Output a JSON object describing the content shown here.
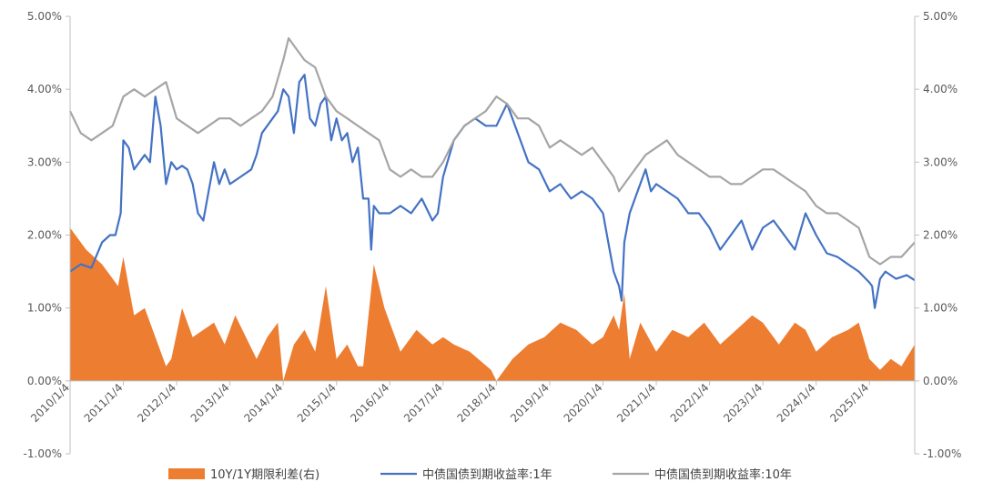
{
  "chart_data": {
    "type": "line",
    "title": "",
    "legend_position": "bottom",
    "grid": false,
    "x_ticks": [
      "2010/1/4",
      "2011/1/4",
      "2012/1/4",
      "2013/1/4",
      "2014/1/4",
      "2015/1/4",
      "2016/1/4",
      "2017/1/4",
      "2018/1/4",
      "2019/1/4",
      "2020/1/4",
      "2021/1/4",
      "2022/1/4",
      "2023/1/4",
      "2024/1/4",
      "2025/1/4"
    ],
    "x_range": [
      2010.0,
      2025.85
    ],
    "y_left": {
      "range": [
        -1.0,
        5.0
      ],
      "ticks": [
        "-1.00%",
        "0.00%",
        "1.00%",
        "2.00%",
        "3.00%",
        "4.00%",
        "5.00%"
      ]
    },
    "y_right": {
      "range": [
        -1.0,
        5.0
      ],
      "ticks": [
        "-1.00%",
        "0.00%",
        "1.00%",
        "2.00%",
        "3.00%",
        "4.00%",
        "5.00%"
      ]
    },
    "series": [
      {
        "name": "10Y/1Y期限利差(右)",
        "type": "area",
        "axis": "right",
        "color": "#ED7D31",
        "x": [
          2010.0,
          2010.3,
          2010.6,
          2010.9,
          2011.0,
          2011.2,
          2011.4,
          2011.6,
          2011.8,
          2011.9,
          2012.1,
          2012.3,
          2012.5,
          2012.7,
          2012.9,
          2013.1,
          2013.3,
          2013.5,
          2013.7,
          2013.9,
          2014.0,
          2014.2,
          2014.4,
          2014.6,
          2014.8,
          2015.0,
          2015.2,
          2015.4,
          2015.5,
          2015.7,
          2015.9,
          2016.2,
          2016.5,
          2016.8,
          2017.0,
          2017.2,
          2017.5,
          2017.9,
          2018.0,
          2018.3,
          2018.6,
          2018.9,
          2019.2,
          2019.5,
          2019.8,
          2020.0,
          2020.2,
          2020.3,
          2020.4,
          2020.5,
          2020.7,
          2021.0,
          2021.3,
          2021.6,
          2021.9,
          2022.2,
          2022.5,
          2022.8,
          2023.0,
          2023.3,
          2023.6,
          2023.8,
          2024.0,
          2024.3,
          2024.6,
          2024.8,
          2025.0,
          2025.2,
          2025.4,
          2025.6,
          2025.85
        ],
        "values": [
          2.1,
          1.8,
          1.6,
          1.3,
          1.7,
          0.9,
          1.0,
          0.6,
          0.2,
          0.3,
          1.0,
          0.6,
          0.7,
          0.8,
          0.5,
          0.9,
          0.6,
          0.3,
          0.6,
          0.8,
          0.0,
          0.5,
          0.7,
          0.4,
          1.3,
          0.3,
          0.5,
          0.2,
          0.2,
          1.6,
          1.0,
          0.4,
          0.7,
          0.5,
          0.6,
          0.5,
          0.4,
          0.15,
          0.0,
          0.3,
          0.5,
          0.6,
          0.8,
          0.7,
          0.5,
          0.6,
          0.9,
          0.7,
          1.2,
          0.3,
          0.8,
          0.4,
          0.7,
          0.6,
          0.8,
          0.5,
          0.7,
          0.9,
          0.8,
          0.5,
          0.8,
          0.7,
          0.4,
          0.6,
          0.7,
          0.8,
          0.3,
          0.15,
          0.3,
          0.2,
          0.5
        ]
      },
      {
        "name": "中债国债到期收益率:1年",
        "type": "line",
        "axis": "left",
        "color": "#4472C4",
        "x": [
          2010.0,
          2010.2,
          2010.4,
          2010.6,
          2010.75,
          2010.85,
          2010.95,
          2011.0,
          2011.1,
          2011.2,
          2011.3,
          2011.4,
          2011.5,
          2011.6,
          2011.7,
          2011.8,
          2011.9,
          2012.0,
          2012.1,
          2012.2,
          2012.3,
          2012.4,
          2012.5,
          2012.6,
          2012.7,
          2012.8,
          2012.9,
          2013.0,
          2013.2,
          2013.4,
          2013.5,
          2013.6,
          2013.7,
          2013.8,
          2013.9,
          2014.0,
          2014.1,
          2014.2,
          2014.3,
          2014.4,
          2014.5,
          2014.6,
          2014.7,
          2014.8,
          2014.9,
          2015.0,
          2015.1,
          2015.2,
          2015.3,
          2015.4,
          2015.5,
          2015.6,
          2015.65,
          2015.7,
          2015.8,
          2016.0,
          2016.2,
          2016.4,
          2016.6,
          2016.8,
          2016.9,
          2017.0,
          2017.2,
          2017.4,
          2017.6,
          2017.8,
          2018.0,
          2018.2,
          2018.4,
          2018.6,
          2018.8,
          2019.0,
          2019.2,
          2019.4,
          2019.6,
          2019.8,
          2020.0,
          2020.1,
          2020.2,
          2020.3,
          2020.35,
          2020.4,
          2020.5,
          2020.6,
          2020.8,
          2020.9,
          2021.0,
          2021.2,
          2021.4,
          2021.6,
          2021.8,
          2022.0,
          2022.2,
          2022.4,
          2022.6,
          2022.8,
          2023.0,
          2023.2,
          2023.4,
          2023.6,
          2023.8,
          2024.0,
          2024.2,
          2024.4,
          2024.6,
          2024.8,
          2025.0,
          2025.05,
          2025.1,
          2025.2,
          2025.3,
          2025.5,
          2025.7,
          2025.85
        ],
        "values": [
          1.5,
          1.6,
          1.55,
          1.9,
          2.0,
          2.0,
          2.3,
          3.3,
          3.2,
          2.9,
          3.0,
          3.1,
          3.0,
          3.9,
          3.5,
          2.7,
          3.0,
          2.9,
          2.95,
          2.9,
          2.7,
          2.3,
          2.2,
          2.6,
          3.0,
          2.7,
          2.9,
          2.7,
          2.8,
          2.9,
          3.1,
          3.4,
          3.5,
          3.6,
          3.7,
          4.0,
          3.9,
          3.4,
          4.1,
          4.2,
          3.6,
          3.5,
          3.8,
          3.9,
          3.3,
          3.6,
          3.3,
          3.4,
          3.0,
          3.2,
          2.5,
          2.5,
          1.8,
          2.4,
          2.3,
          2.3,
          2.4,
          2.3,
          2.5,
          2.2,
          2.3,
          2.8,
          3.3,
          3.5,
          3.6,
          3.5,
          3.5,
          3.8,
          3.4,
          3.0,
          2.9,
          2.6,
          2.7,
          2.5,
          2.6,
          2.5,
          2.3,
          1.9,
          1.5,
          1.3,
          1.1,
          1.9,
          2.3,
          2.5,
          2.9,
          2.6,
          2.7,
          2.6,
          2.5,
          2.3,
          2.3,
          2.1,
          1.8,
          2.0,
          2.2,
          1.8,
          2.1,
          2.2,
          2.0,
          1.8,
          2.3,
          2.0,
          1.75,
          1.7,
          1.6,
          1.5,
          1.35,
          1.3,
          1.0,
          1.4,
          1.5,
          1.4,
          1.45,
          1.38
        ]
      },
      {
        "name": "中债国债到期收益率:10年",
        "type": "line",
        "axis": "left",
        "color": "#A5A5A5",
        "x": [
          2010.0,
          2010.2,
          2010.4,
          2010.6,
          2010.8,
          2011.0,
          2011.2,
          2011.4,
          2011.6,
          2011.8,
          2012.0,
          2012.2,
          2012.4,
          2012.6,
          2012.8,
          2013.0,
          2013.2,
          2013.4,
          2013.6,
          2013.8,
          2014.0,
          2014.1,
          2014.2,
          2014.3,
          2014.4,
          2014.6,
          2014.8,
          2015.0,
          2015.2,
          2015.4,
          2015.6,
          2015.8,
          2016.0,
          2016.2,
          2016.4,
          2016.6,
          2016.8,
          2017.0,
          2017.2,
          2017.4,
          2017.6,
          2017.8,
          2018.0,
          2018.2,
          2018.4,
          2018.6,
          2018.8,
          2019.0,
          2019.2,
          2019.4,
          2019.6,
          2019.8,
          2020.0,
          2020.2,
          2020.3,
          2020.4,
          2020.6,
          2020.8,
          2021.0,
          2021.2,
          2021.4,
          2021.6,
          2021.8,
          2022.0,
          2022.2,
          2022.4,
          2022.6,
          2022.8,
          2023.0,
          2023.2,
          2023.4,
          2023.6,
          2023.8,
          2024.0,
          2024.2,
          2024.4,
          2024.6,
          2024.8,
          2025.0,
          2025.2,
          2025.4,
          2025.6,
          2025.85
        ],
        "values": [
          3.7,
          3.4,
          3.3,
          3.4,
          3.5,
          3.9,
          4.0,
          3.9,
          4.0,
          4.1,
          3.6,
          3.5,
          3.4,
          3.5,
          3.6,
          3.6,
          3.5,
          3.6,
          3.7,
          3.9,
          4.4,
          4.7,
          4.6,
          4.5,
          4.4,
          4.3,
          3.9,
          3.7,
          3.6,
          3.5,
          3.4,
          3.3,
          2.9,
          2.8,
          2.9,
          2.8,
          2.8,
          3.0,
          3.3,
          3.5,
          3.6,
          3.7,
          3.9,
          3.8,
          3.6,
          3.6,
          3.5,
          3.2,
          3.3,
          3.2,
          3.1,
          3.2,
          3.0,
          2.8,
          2.6,
          2.7,
          2.9,
          3.1,
          3.2,
          3.3,
          3.1,
          3.0,
          2.9,
          2.8,
          2.8,
          2.7,
          2.7,
          2.8,
          2.9,
          2.9,
          2.8,
          2.7,
          2.6,
          2.4,
          2.3,
          2.3,
          2.2,
          2.1,
          1.7,
          1.6,
          1.7,
          1.7,
          1.9
        ]
      }
    ]
  }
}
